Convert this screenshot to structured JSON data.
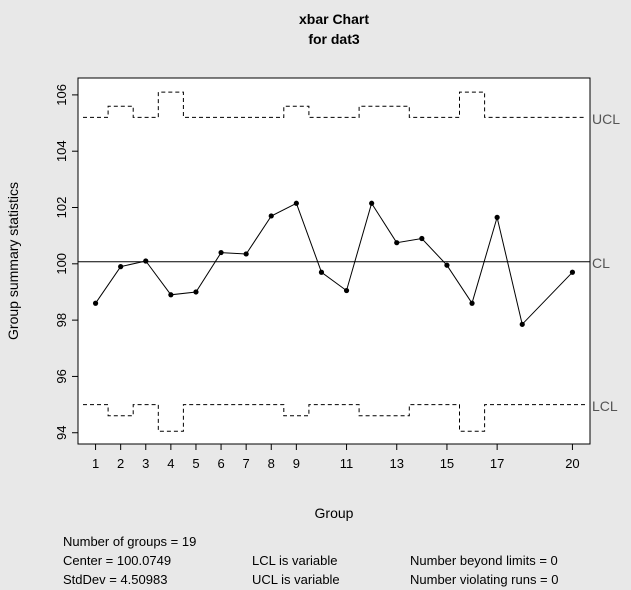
{
  "chart_data": {
    "type": "line",
    "title": "xbar Chart",
    "subtitle": "for dat3",
    "xlabel": "Group",
    "ylabel": "Group summary statistics",
    "x_ticks": [
      "1",
      "2",
      "3",
      "4",
      "5",
      "6",
      "7",
      "8",
      "9",
      "11",
      "13",
      "15",
      "17",
      "20"
    ],
    "x_tick_positions": [
      1,
      2,
      3,
      4,
      5,
      6,
      7,
      8,
      9,
      11,
      13,
      15,
      17,
      20
    ],
    "y_ticks": [
      94,
      96,
      98,
      100,
      102,
      104,
      106
    ],
    "xlim": [
      0.3,
      20.7
    ],
    "ylim": [
      93.6,
      106.6
    ],
    "x": [
      1,
      2,
      3,
      4,
      5,
      6,
      7,
      8,
      9,
      10,
      11,
      12,
      13,
      14,
      15,
      16,
      17,
      18,
      19,
      20
    ],
    "series": [
      {
        "values": [
          98.6,
          99.9,
          100.1,
          98.9,
          99.0,
          100.4,
          100.35,
          101.7,
          102.15,
          99.7,
          99.05,
          102.15,
          100.75,
          100.9,
          99.95,
          98.6,
          101.65,
          97.85,
          null,
          99.7
        ]
      }
    ],
    "center_line": {
      "label": "CL",
      "value": 100.0749
    },
    "ucl": {
      "label": "UCL",
      "values": [
        105.2,
        105.6,
        105.2,
        106.1,
        105.2,
        105.2,
        105.2,
        105.2,
        105.6,
        105.2,
        105.2,
        105.6,
        105.6,
        105.2,
        105.2,
        106.1,
        105.2,
        105.2,
        105.2,
        105.2
      ]
    },
    "lcl": {
      "label": "LCL",
      "values": [
        95.0,
        94.6,
        95.0,
        94.05,
        95.0,
        95.0,
        95.0,
        95.0,
        94.6,
        95.0,
        95.0,
        94.6,
        94.6,
        95.0,
        95.0,
        94.05,
        95.0,
        95.0,
        95.0,
        95.0
      ]
    },
    "grid": false,
    "legend": "none"
  },
  "stats": {
    "groups": "Number of groups = 19",
    "center": "Center = 100.0749",
    "stddev": "StdDev = 4.50983",
    "lcl": "LCL is variable",
    "ucl": "UCL is variable",
    "beyond": "Number beyond limits = 0",
    "violating": "Number violating runs = 0"
  },
  "colors": {
    "background": "#e8e8e8",
    "plot_bg": "#ffffff",
    "ink": "#000000",
    "side_label": "#555555"
  }
}
